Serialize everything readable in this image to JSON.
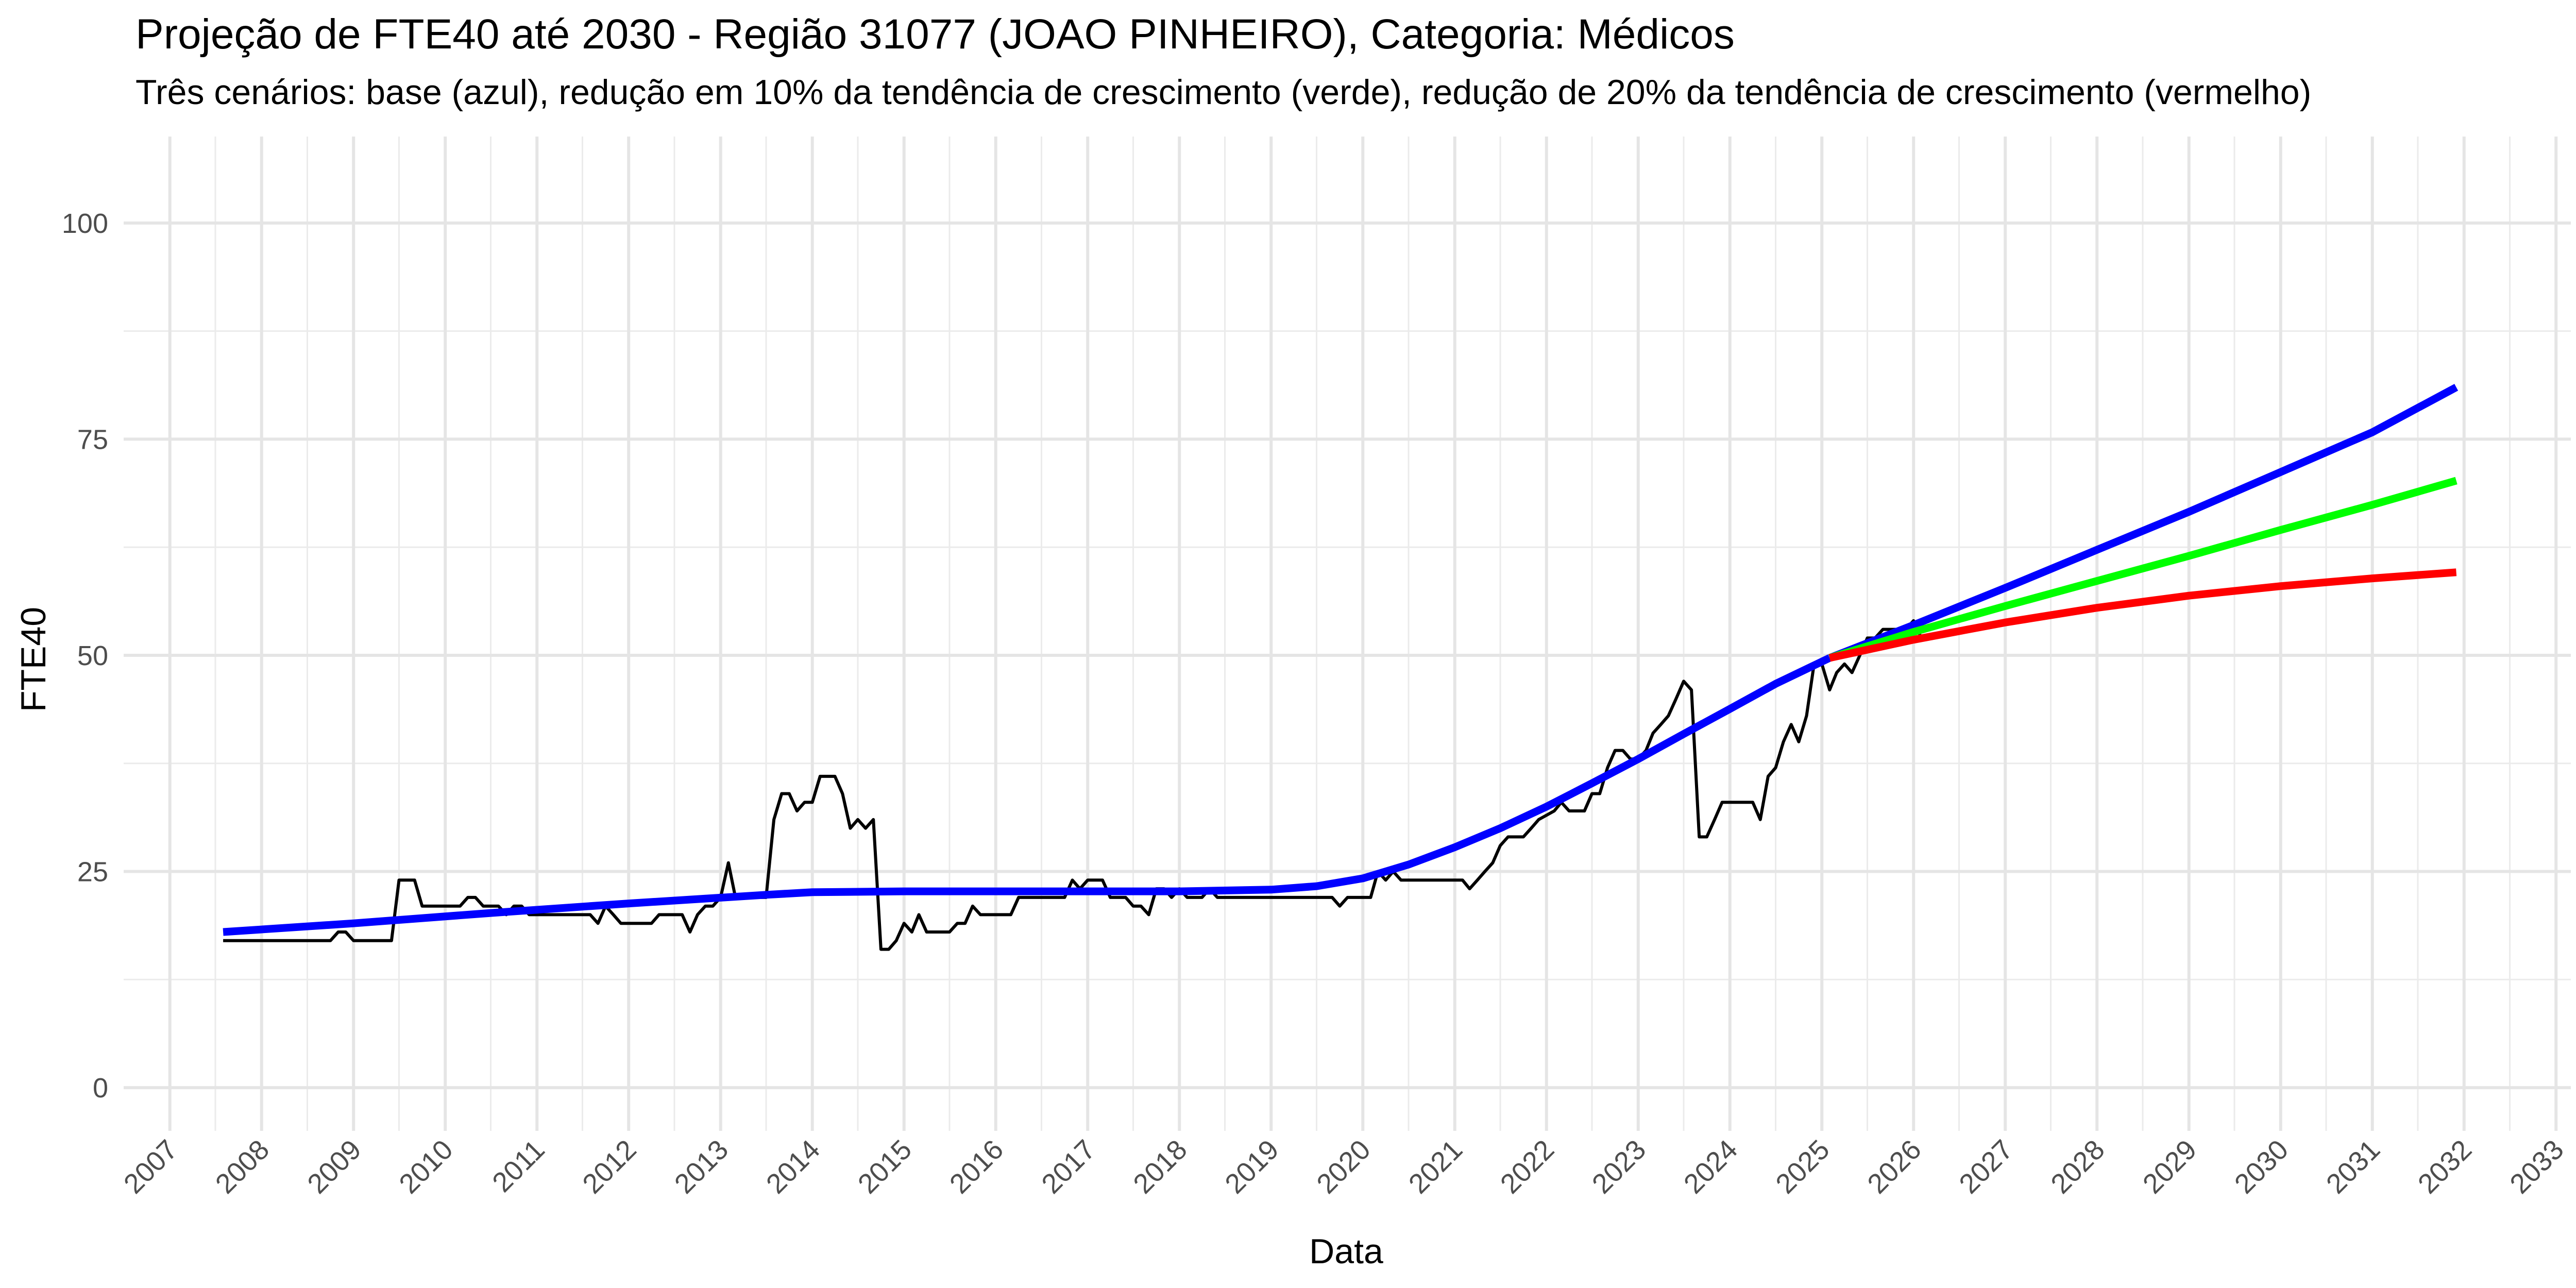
{
  "chart_data": {
    "type": "line",
    "title": "Projeção de FTE40 até 2030 - Região 31077 (JOAO PINHEIRO), Categoria: Médicos",
    "subtitle": "Três cenários: base (azul), redução em 10% da tendência de crescimento (verde), redução de 20% da tendência de crescimento (vermelho)",
    "xlabel": "Data",
    "ylabel": "FTE40",
    "xlim": [
      "2006-07-01",
      "2033-03-01"
    ],
    "ylim": [
      -5,
      110
    ],
    "x_ticks": [
      "2007",
      "2008",
      "2009",
      "2010",
      "2011",
      "2012",
      "2013",
      "2014",
      "2015",
      "2016",
      "2017",
      "2018",
      "2019",
      "2020",
      "2021",
      "2022",
      "2023",
      "2024",
      "2025",
      "2026",
      "2027",
      "2028",
      "2029",
      "2030",
      "2031",
      "2032",
      "2033"
    ],
    "y_ticks": [
      0,
      25,
      50,
      75,
      100
    ],
    "grid": true,
    "legend": "none",
    "series": [
      {
        "color": "#000000",
        "points": [
          [
            "2007-08-01",
            17
          ],
          [
            "2008-10-01",
            17
          ],
          [
            "2008-11-01",
            18
          ],
          [
            "2008-12-01",
            18
          ],
          [
            "2009-01-01",
            17
          ],
          [
            "2009-06-01",
            17
          ],
          [
            "2009-07-01",
            24
          ],
          [
            "2009-09-01",
            24
          ],
          [
            "2009-10-01",
            21
          ],
          [
            "2010-03-01",
            21
          ],
          [
            "2010-04-01",
            22
          ],
          [
            "2010-05-01",
            22
          ],
          [
            "2010-06-01",
            21
          ],
          [
            "2010-08-01",
            21
          ],
          [
            "2010-09-01",
            20
          ],
          [
            "2010-10-01",
            21
          ],
          [
            "2010-11-01",
            21
          ],
          [
            "2010-12-01",
            20
          ],
          [
            "2011-01-01",
            20
          ],
          [
            "2011-02-01",
            20
          ],
          [
            "2011-03-01",
            20
          ],
          [
            "2011-04-01",
            20
          ],
          [
            "2011-05-01",
            20
          ],
          [
            "2011-06-01",
            20
          ],
          [
            "2011-08-01",
            20
          ],
          [
            "2011-09-01",
            19
          ],
          [
            "2011-10-01",
            21
          ],
          [
            "2011-11-01",
            20
          ],
          [
            "2011-12-01",
            19
          ],
          [
            "2012-01-01",
            19
          ],
          [
            "2012-04-01",
            19
          ],
          [
            "2012-05-01",
            20
          ],
          [
            "2012-08-01",
            20
          ],
          [
            "2012-09-01",
            18
          ],
          [
            "2012-10-01",
            20
          ],
          [
            "2012-11-01",
            21
          ],
          [
            "2012-12-01",
            21
          ],
          [
            "2013-01-01",
            22
          ],
          [
            "2013-02-01",
            26
          ],
          [
            "2013-03-01",
            22
          ],
          [
            "2013-04-01",
            22
          ],
          [
            "2013-07-01",
            22
          ],
          [
            "2013-08-01",
            31
          ],
          [
            "2013-09-01",
            34
          ],
          [
            "2013-10-01",
            34
          ],
          [
            "2013-11-01",
            32
          ],
          [
            "2013-12-01",
            33
          ],
          [
            "2014-01-01",
            33
          ],
          [
            "2014-02-01",
            36
          ],
          [
            "2014-04-01",
            36
          ],
          [
            "2014-05-01",
            34
          ],
          [
            "2014-06-01",
            30
          ],
          [
            "2014-07-01",
            31
          ],
          [
            "2014-08-01",
            30
          ],
          [
            "2014-09-01",
            31
          ],
          [
            "2014-10-01",
            16
          ],
          [
            "2014-11-01",
            16
          ],
          [
            "2014-12-01",
            17
          ],
          [
            "2015-01-01",
            19
          ],
          [
            "2015-02-01",
            18
          ],
          [
            "2015-03-01",
            20
          ],
          [
            "2015-04-01",
            18
          ],
          [
            "2015-07-01",
            18
          ],
          [
            "2015-08-01",
            19
          ],
          [
            "2015-09-01",
            19
          ],
          [
            "2015-10-01",
            21
          ],
          [
            "2015-11-01",
            20
          ],
          [
            "2016-03-01",
            20
          ],
          [
            "2016-04-01",
            22
          ],
          [
            "2016-10-01",
            22
          ],
          [
            "2016-11-01",
            24
          ],
          [
            "2016-12-01",
            23
          ],
          [
            "2017-01-01",
            24
          ],
          [
            "2017-03-01",
            24
          ],
          [
            "2017-04-01",
            22
          ],
          [
            "2017-06-01",
            22
          ],
          [
            "2017-07-01",
            21
          ],
          [
            "2017-08-01",
            21
          ],
          [
            "2017-09-01",
            20
          ],
          [
            "2017-10-01",
            23
          ],
          [
            "2017-11-01",
            23
          ],
          [
            "2017-12-01",
            22
          ],
          [
            "2018-01-01",
            23
          ],
          [
            "2018-02-01",
            22
          ],
          [
            "2018-04-01",
            22
          ],
          [
            "2018-05-01",
            23
          ],
          [
            "2018-06-01",
            22
          ],
          [
            "2019-09-01",
            22
          ],
          [
            "2019-10-01",
            21
          ],
          [
            "2019-11-01",
            22
          ],
          [
            "2020-02-01",
            22
          ],
          [
            "2020-03-01",
            25
          ],
          [
            "2020-04-01",
            24
          ],
          [
            "2020-05-01",
            25
          ],
          [
            "2020-06-01",
            24
          ],
          [
            "2021-02-01",
            24
          ],
          [
            "2021-03-01",
            23
          ],
          [
            "2021-04-01",
            24
          ],
          [
            "2021-05-01",
            25
          ],
          [
            "2021-06-01",
            26
          ],
          [
            "2021-07-01",
            28
          ],
          [
            "2021-08-01",
            29
          ],
          [
            "2021-10-01",
            29
          ],
          [
            "2021-11-01",
            30
          ],
          [
            "2021-12-01",
            31
          ],
          [
            "2022-02-01",
            32
          ],
          [
            "2022-03-01",
            33
          ],
          [
            "2022-04-01",
            32
          ],
          [
            "2022-06-01",
            32
          ],
          [
            "2022-07-01",
            34
          ],
          [
            "2022-08-01",
            34
          ],
          [
            "2022-09-01",
            37
          ],
          [
            "2022-10-01",
            39
          ],
          [
            "2022-11-01",
            39
          ],
          [
            "2022-12-01",
            38
          ],
          [
            "2023-01-01",
            38
          ],
          [
            "2023-02-01",
            39
          ],
          [
            "2023-03-01",
            41
          ],
          [
            "2023-04-01",
            42
          ],
          [
            "2023-05-01",
            43
          ],
          [
            "2023-06-01",
            45
          ],
          [
            "2023-07-01",
            47
          ],
          [
            "2023-08-01",
            46
          ],
          [
            "2023-09-01",
            29
          ],
          [
            "2023-10-01",
            29
          ],
          [
            "2023-11-01",
            31
          ],
          [
            "2023-12-01",
            33
          ],
          [
            "2024-04-01",
            33
          ],
          [
            "2024-05-01",
            31
          ],
          [
            "2024-06-01",
            36
          ],
          [
            "2024-07-01",
            37
          ],
          [
            "2024-08-01",
            40
          ],
          [
            "2024-09-01",
            42
          ],
          [
            "2024-10-01",
            40
          ],
          [
            "2024-11-01",
            43
          ],
          [
            "2024-12-01",
            49
          ],
          [
            "2025-01-01",
            49
          ],
          [
            "2025-02-01",
            46
          ],
          [
            "2025-03-01",
            48
          ],
          [
            "2025-04-01",
            49
          ],
          [
            "2025-05-01",
            48
          ],
          [
            "2025-06-01",
            50
          ],
          [
            "2025-07-01",
            52
          ],
          [
            "2025-08-01",
            52
          ],
          [
            "2025-09-01",
            53
          ],
          [
            "2025-12-01",
            53
          ],
          [
            "2026-01-01",
            54
          ],
          [
            "2026-02-01",
            52
          ]
        ]
      },
      {
        "color": "#0000ff",
        "points": [
          [
            "2007-08-01",
            18
          ],
          [
            "2009-01-01",
            19
          ],
          [
            "2010-07-01",
            20.2
          ],
          [
            "2012-01-01",
            21.3
          ],
          [
            "2013-07-01",
            22.3
          ],
          [
            "2014-01-01",
            22.6
          ],
          [
            "2015-01-01",
            22.7
          ],
          [
            "2016-07-01",
            22.7
          ],
          [
            "2018-01-01",
            22.7
          ],
          [
            "2019-01-01",
            22.9
          ],
          [
            "2019-07-01",
            23.3
          ],
          [
            "2020-01-01",
            24.2
          ],
          [
            "2020-07-01",
            25.8
          ],
          [
            "2021-01-01",
            27.8
          ],
          [
            "2021-07-01",
            30
          ],
          [
            "2022-01-01",
            32.5
          ],
          [
            "2022-07-01",
            35.2
          ],
          [
            "2023-01-01",
            38
          ],
          [
            "2023-07-01",
            40.9
          ],
          [
            "2024-01-01",
            43.8
          ],
          [
            "2024-07-01",
            46.7
          ],
          [
            "2025-02-01",
            49.7
          ]
        ]
      },
      {
        "color": "#0000ff",
        "points": [
          [
            "2025-02-01",
            49.7
          ],
          [
            "2026-01-01",
            53.5
          ],
          [
            "2027-01-01",
            57.8
          ],
          [
            "2028-01-01",
            62.2
          ],
          [
            "2029-01-01",
            66.6
          ],
          [
            "2030-01-01",
            71.2
          ],
          [
            "2031-01-01",
            75.8
          ],
          [
            "2031-12-01",
            81
          ]
        ]
      },
      {
        "color": "#00ff00",
        "points": [
          [
            "2025-02-01",
            49.7
          ],
          [
            "2026-01-01",
            52.7
          ],
          [
            "2027-01-01",
            55.7
          ],
          [
            "2028-01-01",
            58.6
          ],
          [
            "2029-01-01",
            61.5
          ],
          [
            "2030-01-01",
            64.5
          ],
          [
            "2031-01-01",
            67.4
          ],
          [
            "2031-12-01",
            70.2
          ]
        ]
      },
      {
        "color": "#ff0000",
        "points": [
          [
            "2025-02-01",
            49.7
          ],
          [
            "2026-01-01",
            51.8
          ],
          [
            "2027-01-01",
            53.8
          ],
          [
            "2028-01-01",
            55.5
          ],
          [
            "2029-01-01",
            56.9
          ],
          [
            "2030-01-01",
            58
          ],
          [
            "2031-01-01",
            58.9
          ],
          [
            "2031-12-01",
            59.6
          ]
        ]
      }
    ]
  }
}
